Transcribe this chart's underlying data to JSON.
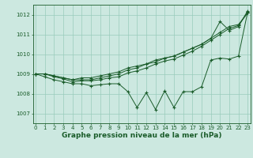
{
  "title": "Graphe pression niveau de la mer (hPa)",
  "xlabel_hours": [
    0,
    1,
    2,
    3,
    4,
    5,
    6,
    7,
    8,
    9,
    10,
    11,
    12,
    13,
    14,
    15,
    16,
    17,
    18,
    19,
    20,
    21,
    22,
    23
  ],
  "line1": [
    1009.0,
    1009.0,
    1008.9,
    1008.8,
    1008.7,
    1008.8,
    1008.8,
    1008.9,
    1009.0,
    1009.1,
    1009.3,
    1009.4,
    1009.5,
    1009.7,
    1009.8,
    1009.9,
    1010.1,
    1010.3,
    1010.5,
    1010.8,
    1011.1,
    1011.4,
    1011.5,
    1012.1
  ],
  "line2": [
    1009.0,
    1009.0,
    1008.9,
    1008.8,
    1008.7,
    1008.7,
    1008.7,
    1008.8,
    1008.9,
    1009.0,
    1009.2,
    1009.3,
    1009.5,
    1009.6,
    1009.8,
    1009.9,
    1010.1,
    1010.3,
    1010.5,
    1010.8,
    1011.65,
    1011.2,
    1011.4,
    1012.2
  ],
  "line3": [
    1009.0,
    1009.0,
    1008.85,
    1008.75,
    1008.6,
    1008.65,
    1008.65,
    1008.7,
    1008.8,
    1008.85,
    1009.05,
    1009.15,
    1009.3,
    1009.5,
    1009.65,
    1009.75,
    1009.95,
    1010.15,
    1010.4,
    1010.7,
    1011.0,
    1011.3,
    1011.45,
    1012.1
  ],
  "line4": [
    1009.0,
    1008.85,
    1008.7,
    1008.6,
    1008.5,
    1008.5,
    1008.4,
    1008.45,
    1008.5,
    1008.5,
    1008.1,
    1007.3,
    1008.05,
    1007.2,
    1008.15,
    1007.3,
    1008.1,
    1008.1,
    1008.35,
    1009.7,
    1009.8,
    1009.75,
    1009.9,
    1012.15
  ],
  "ylim": [
    1006.5,
    1012.5
  ],
  "yticks": [
    1007,
    1008,
    1009,
    1010,
    1011,
    1012
  ],
  "bg_color": "#cce8e0",
  "line_color": "#1a5c2a",
  "grid_color": "#99ccbb",
  "title_color": "#1a5c2a",
  "title_fontsize": 6.5,
  "tick_fontsize": 5.0
}
